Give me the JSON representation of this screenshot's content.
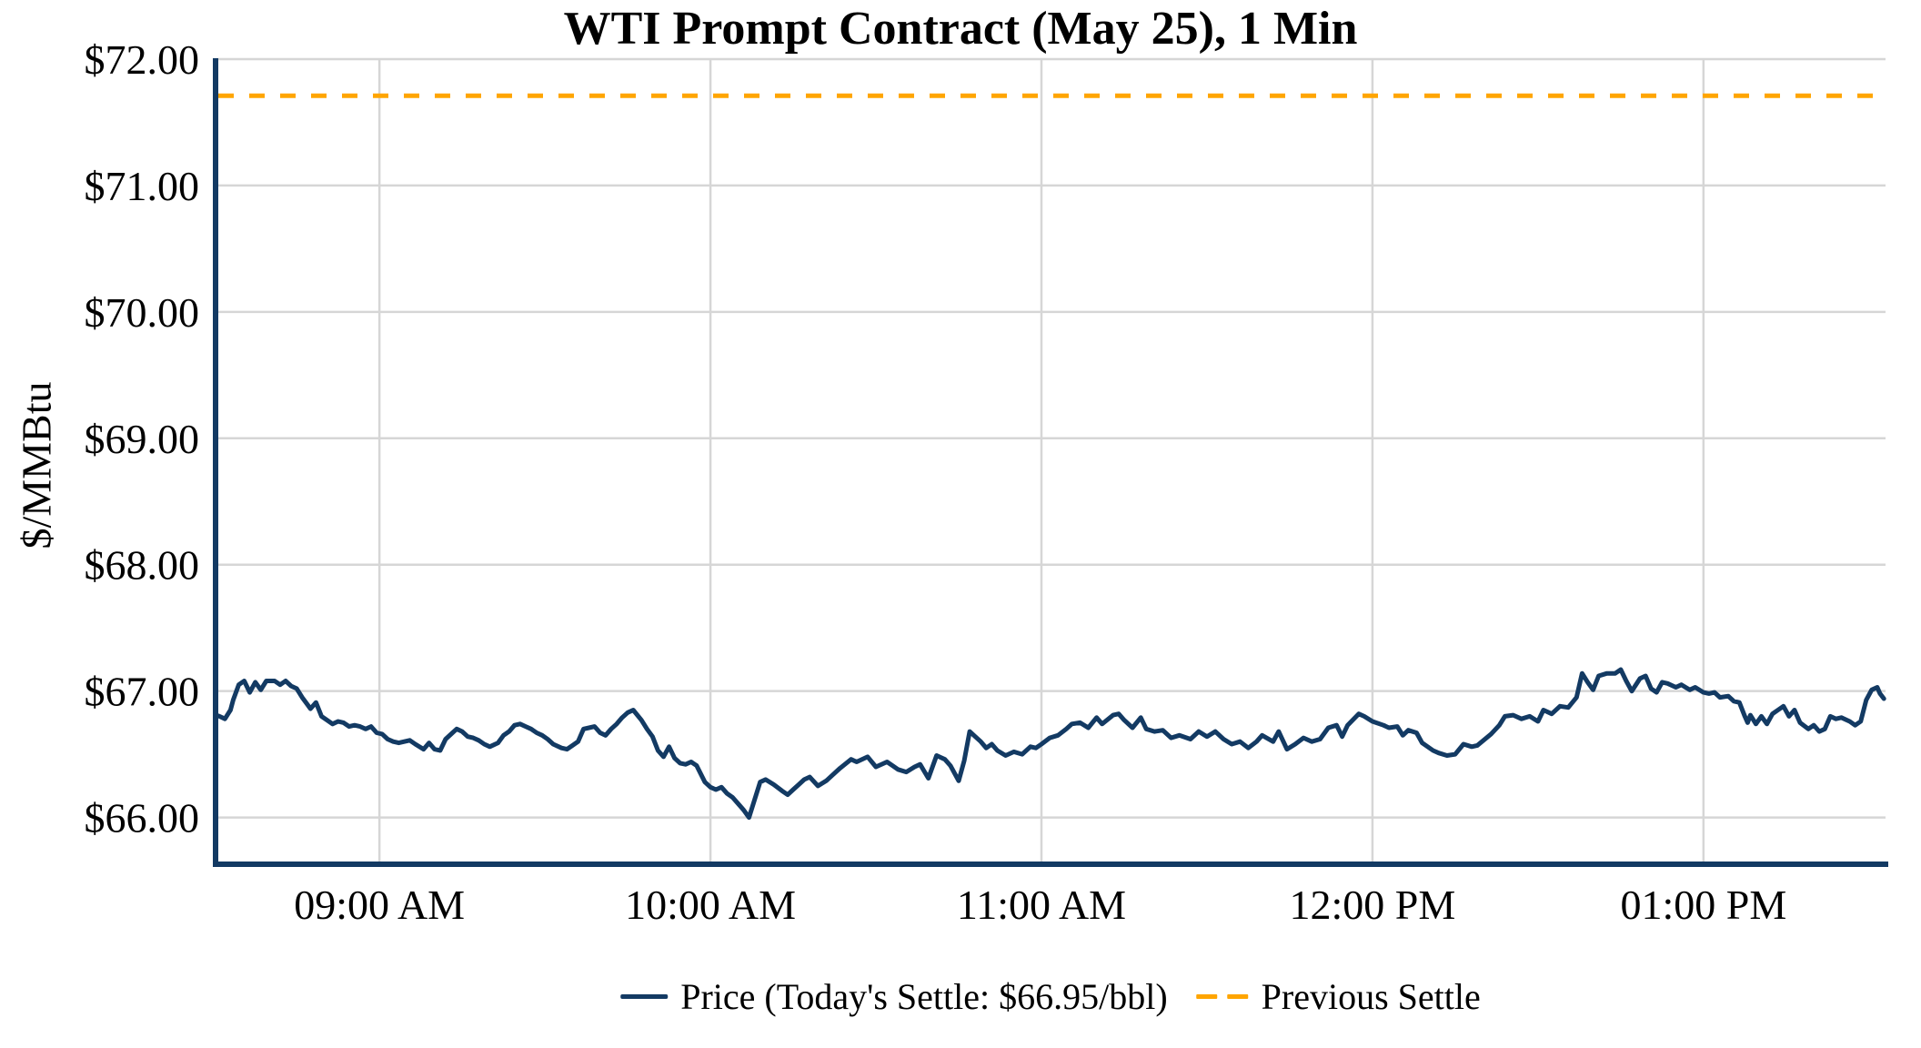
{
  "chart_data": {
    "type": "line",
    "title": "WTI Prompt Contract (May 25), 1 Min",
    "ylabel": "$/MMBtu",
    "xlabel": "",
    "grid": true,
    "legend_position": "bottom",
    "background": "#FFFFFF",
    "axis_color": "#133A63",
    "gridline_color": "#D6D6D6",
    "text_color": "#000000",
    "y_axis": {
      "ylim": [
        65.63,
        72.0
      ],
      "ticks": [
        {
          "v": 72,
          "label": "$72.00"
        },
        {
          "v": 71,
          "label": "$71.00"
        },
        {
          "v": 70,
          "label": "$70.00"
        },
        {
          "v": 69,
          "label": "$69.00"
        },
        {
          "v": 68,
          "label": "$68.00"
        },
        {
          "v": 67,
          "label": "$67.00"
        },
        {
          "v": 66,
          "label": "$66.00"
        }
      ]
    },
    "x_axis": {
      "unit": "minutes_after_08:30_AM",
      "xlim": [
        0.3,
        303
      ],
      "ticks": [
        {
          "m": 30,
          "label": "09:00 AM"
        },
        {
          "m": 90,
          "label": "10:00 AM"
        },
        {
          "m": 150,
          "label": "11:00 AM"
        },
        {
          "m": 210,
          "label": "12:00 PM"
        },
        {
          "m": 270,
          "label": "01:00 PM"
        }
      ]
    },
    "todays_settle_usd_per_bbl": 66.95,
    "series": [
      {
        "name": "Price",
        "legend_label": "Price (Today's Settle: $66.95/bbl)",
        "color": "#133A63",
        "style": "solid",
        "points": [
          [
            0.4,
            66.81
          ],
          [
            1,
            66.8
          ],
          [
            2,
            66.78
          ],
          [
            3,
            66.85
          ],
          [
            3.5,
            66.93
          ],
          [
            4.5,
            67.05
          ],
          [
            5.5,
            67.08
          ],
          [
            6.5,
            66.99
          ],
          [
            7.5,
            67.07
          ],
          [
            8.5,
            67.01
          ],
          [
            9.5,
            67.08
          ],
          [
            11,
            67.08
          ],
          [
            12,
            67.05
          ],
          [
            13,
            67.08
          ],
          [
            14,
            67.04
          ],
          [
            15,
            67.02
          ],
          [
            16,
            66.95
          ],
          [
            17,
            66.89
          ],
          [
            17.5,
            66.86
          ],
          [
            18.5,
            66.91
          ],
          [
            19.5,
            66.8
          ],
          [
            20.5,
            66.77
          ],
          [
            21.5,
            66.74
          ],
          [
            22.5,
            66.76
          ],
          [
            23.5,
            66.75
          ],
          [
            24.5,
            66.72
          ],
          [
            25.5,
            66.73
          ],
          [
            26.5,
            66.72
          ],
          [
            27.5,
            66.7
          ],
          [
            28.5,
            66.72
          ],
          [
            29.5,
            66.67
          ],
          [
            30.5,
            66.66
          ],
          [
            31.5,
            66.62
          ],
          [
            32.5,
            66.6
          ],
          [
            33.5,
            66.59
          ],
          [
            34.5,
            66.6
          ],
          [
            35.5,
            66.61
          ],
          [
            36.5,
            66.58
          ],
          [
            38,
            66.54
          ],
          [
            39,
            66.59
          ],
          [
            40,
            66.54
          ],
          [
            41,
            66.53
          ],
          [
            42,
            66.62
          ],
          [
            43,
            66.66
          ],
          [
            44,
            66.7
          ],
          [
            45,
            66.68
          ],
          [
            46,
            66.64
          ],
          [
            47,
            66.63
          ],
          [
            48,
            66.61
          ],
          [
            49,
            66.58
          ],
          [
            50,
            66.56
          ],
          [
            51.5,
            66.59
          ],
          [
            52.5,
            66.65
          ],
          [
            53.5,
            66.68
          ],
          [
            54.5,
            66.73
          ],
          [
            55.5,
            66.74
          ],
          [
            56.5,
            66.72
          ],
          [
            57.5,
            66.7
          ],
          [
            58.5,
            66.67
          ],
          [
            59.5,
            66.65
          ],
          [
            60.5,
            66.62
          ],
          [
            61.5,
            66.58
          ],
          [
            63,
            66.55
          ],
          [
            64,
            66.54
          ],
          [
            65,
            66.57
          ],
          [
            66,
            66.6
          ],
          [
            67,
            66.7
          ],
          [
            68,
            66.71
          ],
          [
            69,
            66.72
          ],
          [
            70,
            66.67
          ],
          [
            71,
            66.65
          ],
          [
            72,
            66.7
          ],
          [
            73,
            66.74
          ],
          [
            74,
            66.79
          ],
          [
            75,
            66.83
          ],
          [
            76,
            66.85
          ],
          [
            77.5,
            66.77
          ],
          [
            78.5,
            66.7
          ],
          [
            79.5,
            66.64
          ],
          [
            80.5,
            66.53
          ],
          [
            81.5,
            66.48
          ],
          [
            82.5,
            66.56
          ],
          [
            83.5,
            66.47
          ],
          [
            84.5,
            66.43
          ],
          [
            85.5,
            66.42
          ],
          [
            86.5,
            66.44
          ],
          [
            87.5,
            66.41
          ],
          [
            89,
            66.28
          ],
          [
            90,
            66.24
          ],
          [
            91,
            66.22
          ],
          [
            92,
            66.24
          ],
          [
            93,
            66.19
          ],
          [
            94,
            66.16
          ],
          [
            95,
            66.11
          ],
          [
            96,
            66.06
          ],
          [
            97,
            66.0
          ],
          [
            98,
            66.14
          ],
          [
            99,
            66.28
          ],
          [
            100,
            66.3
          ],
          [
            101.5,
            66.26
          ],
          [
            103,
            66.21
          ],
          [
            104,
            66.18
          ],
          [
            105,
            66.22
          ],
          [
            106,
            66.26
          ],
          [
            107,
            66.3
          ],
          [
            108,
            66.32
          ],
          [
            109.5,
            66.25
          ],
          [
            111,
            66.29
          ],
          [
            112,
            66.33
          ],
          [
            113.5,
            66.39
          ],
          [
            115.5,
            66.46
          ],
          [
            116.5,
            66.44
          ],
          [
            118.5,
            66.48
          ],
          [
            120,
            66.4
          ],
          [
            122,
            66.44
          ],
          [
            123,
            66.41
          ],
          [
            124,
            66.38
          ],
          [
            125.5,
            66.36
          ],
          [
            127,
            66.4
          ],
          [
            128,
            66.42
          ],
          [
            129.5,
            66.31
          ],
          [
            131,
            66.49
          ],
          [
            132.5,
            66.46
          ],
          [
            133.5,
            66.41
          ],
          [
            135,
            66.29
          ],
          [
            136,
            66.45
          ],
          [
            137,
            66.68
          ],
          [
            138,
            66.64
          ],
          [
            139,
            66.6
          ],
          [
            140,
            66.55
          ],
          [
            141,
            66.58
          ],
          [
            142,
            66.53
          ],
          [
            143.5,
            66.49
          ],
          [
            145,
            66.52
          ],
          [
            146.5,
            66.5
          ],
          [
            148,
            66.56
          ],
          [
            149,
            66.55
          ],
          [
            150,
            66.58
          ],
          [
            151.5,
            66.63
          ],
          [
            153,
            66.65
          ],
          [
            154.5,
            66.7
          ],
          [
            155.5,
            66.74
          ],
          [
            157,
            66.75
          ],
          [
            158.5,
            66.71
          ],
          [
            160,
            66.79
          ],
          [
            161,
            66.74
          ],
          [
            163,
            66.81
          ],
          [
            164,
            66.82
          ],
          [
            165,
            66.77
          ],
          [
            166.5,
            66.71
          ],
          [
            168,
            66.79
          ],
          [
            169,
            66.7
          ],
          [
            170.5,
            66.68
          ],
          [
            172,
            66.69
          ],
          [
            173.5,
            66.63
          ],
          [
            175,
            66.65
          ],
          [
            177,
            66.62
          ],
          [
            178.5,
            66.68
          ],
          [
            180,
            66.64
          ],
          [
            181.5,
            66.68
          ],
          [
            183,
            66.62
          ],
          [
            184.5,
            66.58
          ],
          [
            186,
            66.6
          ],
          [
            187.5,
            66.55
          ],
          [
            189,
            66.6
          ],
          [
            190,
            66.65
          ],
          [
            192,
            66.6
          ],
          [
            193,
            66.68
          ],
          [
            194.5,
            66.54
          ],
          [
            196,
            66.58
          ],
          [
            197.5,
            66.63
          ],
          [
            199,
            66.6
          ],
          [
            200.5,
            66.62
          ],
          [
            202,
            66.71
          ],
          [
            203.5,
            66.73
          ],
          [
            204.5,
            66.64
          ],
          [
            205.5,
            66.73
          ],
          [
            207.5,
            66.82
          ],
          [
            208.5,
            66.8
          ],
          [
            210,
            66.76
          ],
          [
            212,
            66.73
          ],
          [
            213,
            66.71
          ],
          [
            214.5,
            66.72
          ],
          [
            215.5,
            66.65
          ],
          [
            216.5,
            66.69
          ],
          [
            218,
            66.67
          ],
          [
            219,
            66.59
          ],
          [
            221,
            66.53
          ],
          [
            222,
            66.51
          ],
          [
            223.5,
            66.49
          ],
          [
            225,
            66.5
          ],
          [
            226.5,
            66.58
          ],
          [
            228,
            66.56
          ],
          [
            229,
            66.57
          ],
          [
            231.5,
            66.66
          ],
          [
            233,
            66.73
          ],
          [
            234,
            66.8
          ],
          [
            235.5,
            66.81
          ],
          [
            237,
            66.78
          ],
          [
            238.5,
            66.8
          ],
          [
            240,
            66.76
          ],
          [
            241,
            66.85
          ],
          [
            242.5,
            66.82
          ],
          [
            244,
            66.88
          ],
          [
            245.5,
            66.87
          ],
          [
            247,
            66.95
          ],
          [
            248,
            67.14
          ],
          [
            249,
            67.07
          ],
          [
            250,
            67.01
          ],
          [
            251,
            67.12
          ],
          [
            252.5,
            67.14
          ],
          [
            254,
            67.14
          ],
          [
            255,
            67.17
          ],
          [
            256,
            67.08
          ],
          [
            257,
            67.0
          ],
          [
            258.5,
            67.1
          ],
          [
            259.5,
            67.12
          ],
          [
            260.5,
            67.02
          ],
          [
            261.5,
            66.99
          ],
          [
            262.5,
            67.07
          ],
          [
            263.5,
            67.06
          ],
          [
            265,
            67.03
          ],
          [
            266,
            67.05
          ],
          [
            267.5,
            67.01
          ],
          [
            268.5,
            67.03
          ],
          [
            270,
            66.99
          ],
          [
            271,
            66.98
          ],
          [
            272,
            66.99
          ],
          [
            273,
            66.95
          ],
          [
            274.5,
            66.96
          ],
          [
            275.5,
            66.92
          ],
          [
            276.5,
            66.91
          ],
          [
            277.5,
            66.8
          ],
          [
            278,
            66.75
          ],
          [
            278.5,
            66.81
          ],
          [
            279.5,
            66.74
          ],
          [
            280.5,
            66.8
          ],
          [
            281.5,
            66.74
          ],
          [
            282.5,
            66.82
          ],
          [
            283.5,
            66.85
          ],
          [
            284.5,
            66.88
          ],
          [
            285.5,
            66.8
          ],
          [
            286.5,
            66.85
          ],
          [
            287.5,
            66.75
          ],
          [
            289,
            66.7
          ],
          [
            290,
            66.73
          ],
          [
            291,
            66.68
          ],
          [
            292,
            66.7
          ],
          [
            293,
            66.8
          ],
          [
            294,
            66.78
          ],
          [
            295,
            66.79
          ],
          [
            296.5,
            66.76
          ],
          [
            297.5,
            66.73
          ],
          [
            298.5,
            66.76
          ],
          [
            299.5,
            66.93
          ],
          [
            300.5,
            67.01
          ],
          [
            301.5,
            67.03
          ],
          [
            302,
            66.98
          ],
          [
            302.7,
            66.94
          ]
        ]
      },
      {
        "name": "Previous Settle",
        "legend_label": "Previous Settle",
        "color": "#FFA500",
        "style": "dashed",
        "value": 71.71
      }
    ]
  }
}
